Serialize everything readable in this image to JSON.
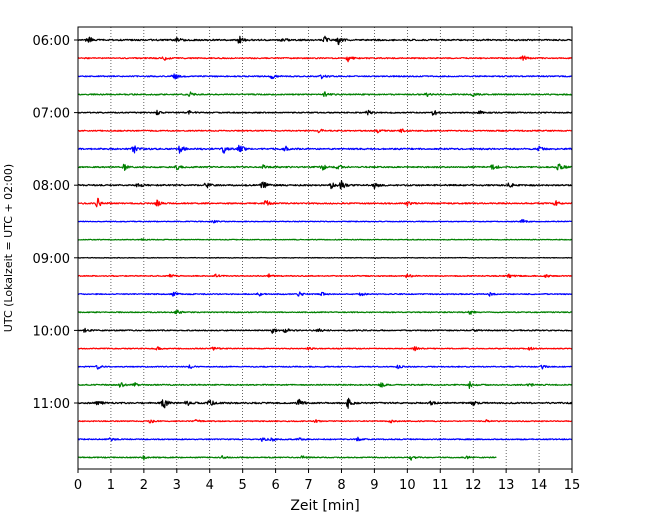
{
  "chart_data": {
    "type": "line",
    "title": "",
    "xlabel": "Zeit  [min]",
    "ylabel": "UTC (Lokalzeit = UTC + 02:00)",
    "xlim": [
      0,
      15
    ],
    "x_ticks": [
      "0",
      "1",
      "2",
      "3",
      "4",
      "5",
      "6",
      "7",
      "8",
      "9",
      "10",
      "11",
      "12",
      "13",
      "14",
      "15"
    ],
    "y_tick_labels": [
      "06:00",
      "07:00",
      "08:00",
      "09:00",
      "10:00",
      "11:00"
    ],
    "y_tick_rows": [
      0,
      4,
      8,
      12,
      16,
      20
    ],
    "grid": "vertical dotted",
    "legend": "none",
    "trace_interval_min": 15,
    "colors": [
      "#000000",
      "#ff0000",
      "#0000ff",
      "#008000"
    ],
    "rows": [
      {
        "time": "06:00",
        "color": "#000000",
        "end_min": 15,
        "amplitude": 1.0,
        "events": [
          [
            0.3,
            0.8
          ],
          [
            3.0,
            0.4
          ],
          [
            4.9,
            0.7
          ],
          [
            6.2,
            0.6
          ],
          [
            7.5,
            0.5
          ],
          [
            7.9,
            0.8
          ]
        ]
      },
      {
        "time": "06:15",
        "color": "#ff0000",
        "end_min": 15,
        "amplitude": 0.8,
        "events": [
          [
            2.6,
            0.5
          ],
          [
            8.2,
            0.6
          ],
          [
            13.5,
            0.7
          ]
        ]
      },
      {
        "time": "06:30",
        "color": "#0000ff",
        "end_min": 15,
        "amplitude": 0.8,
        "events": [
          [
            2.9,
            1.0
          ],
          [
            5.9,
            0.6
          ],
          [
            7.4,
            0.4
          ]
        ]
      },
      {
        "time": "06:45",
        "color": "#008000",
        "end_min": 15,
        "amplitude": 0.8,
        "events": [
          [
            3.4,
            0.5
          ],
          [
            7.5,
            0.7
          ],
          [
            10.6,
            0.6
          ],
          [
            12.0,
            0.4
          ]
        ]
      },
      {
        "time": "07:00",
        "color": "#000000",
        "end_min": 15,
        "amplitude": 0.8,
        "events": [
          [
            2.4,
            0.4
          ],
          [
            3.4,
            0.5
          ],
          [
            8.8,
            0.5
          ],
          [
            10.8,
            0.7
          ],
          [
            12.2,
            0.4
          ]
        ]
      },
      {
        "time": "07:15",
        "color": "#ff0000",
        "end_min": 15,
        "amplitude": 0.8,
        "events": [
          [
            7.3,
            0.5
          ],
          [
            9.1,
            0.4
          ],
          [
            9.8,
            0.5
          ]
        ]
      },
      {
        "time": "07:30",
        "color": "#0000ff",
        "end_min": 15,
        "amplitude": 1.0,
        "events": [
          [
            1.7,
            0.7
          ],
          [
            3.1,
            0.8
          ],
          [
            4.4,
            0.9
          ],
          [
            4.9,
            0.8
          ],
          [
            6.3,
            0.4
          ],
          [
            14.0,
            0.4
          ]
        ]
      },
      {
        "time": "07:45",
        "color": "#008000",
        "end_min": 15,
        "amplitude": 0.9,
        "events": [
          [
            1.4,
            0.6
          ],
          [
            3.0,
            0.5
          ],
          [
            5.6,
            0.5
          ],
          [
            7.4,
            0.7
          ],
          [
            7.9,
            0.6
          ],
          [
            12.6,
            0.7
          ],
          [
            14.6,
            0.9
          ]
        ]
      },
      {
        "time": "08:00",
        "color": "#000000",
        "end_min": 15,
        "amplitude": 1.0,
        "events": [
          [
            1.8,
            0.5
          ],
          [
            3.9,
            0.5
          ],
          [
            5.6,
            0.9
          ],
          [
            7.7,
            0.6
          ],
          [
            8.0,
            0.7
          ],
          [
            9.0,
            0.5
          ],
          [
            13.1,
            0.5
          ]
        ]
      },
      {
        "time": "08:15",
        "color": "#ff0000",
        "end_min": 15,
        "amplitude": 0.9,
        "events": [
          [
            0.6,
            0.9
          ],
          [
            2.4,
            0.5
          ],
          [
            5.7,
            0.6
          ],
          [
            10.0,
            0.4
          ],
          [
            14.5,
            0.5
          ]
        ]
      },
      {
        "time": "08:30",
        "color": "#0000ff",
        "end_min": 15,
        "amplitude": 0.6,
        "events": [
          [
            4.1,
            0.4
          ],
          [
            13.5,
            0.6
          ]
        ]
      },
      {
        "time": "08:45",
        "color": "#008000",
        "end_min": 15,
        "amplitude": 0.5,
        "events": [
          [
            1.9,
            0.5
          ]
        ]
      },
      {
        "time": "09:00",
        "color": "#000000",
        "end_min": 15,
        "amplitude": 0.4,
        "events": [
          [
            9.0,
            0.3
          ]
        ]
      },
      {
        "time": "09:15",
        "color": "#ff0000",
        "end_min": 15,
        "amplitude": 0.7,
        "events": [
          [
            2.8,
            0.5
          ],
          [
            4.2,
            0.5
          ],
          [
            5.8,
            0.4
          ],
          [
            10.0,
            0.5
          ],
          [
            13.1,
            0.4
          ],
          [
            14.2,
            0.4
          ]
        ]
      },
      {
        "time": "09:30",
        "color": "#0000ff",
        "end_min": 15,
        "amplitude": 0.7,
        "events": [
          [
            2.9,
            0.6
          ],
          [
            5.5,
            0.4
          ],
          [
            6.7,
            0.6
          ],
          [
            7.4,
            0.4
          ],
          [
            8.6,
            0.4
          ],
          [
            12.5,
            0.4
          ]
        ]
      },
      {
        "time": "09:45",
        "color": "#008000",
        "end_min": 15,
        "amplitude": 0.7,
        "events": [
          [
            3.0,
            0.6
          ],
          [
            11.9,
            0.6
          ]
        ]
      },
      {
        "time": "10:00",
        "color": "#000000",
        "end_min": 15,
        "amplitude": 0.8,
        "events": [
          [
            0.2,
            0.6
          ],
          [
            5.9,
            0.6
          ],
          [
            6.3,
            0.6
          ],
          [
            7.3,
            0.4
          ],
          [
            12.0,
            0.4
          ]
        ]
      },
      {
        "time": "10:15",
        "color": "#ff0000",
        "end_min": 15,
        "amplitude": 0.7,
        "events": [
          [
            2.4,
            0.4
          ],
          [
            4.1,
            0.4
          ],
          [
            7.0,
            0.4
          ],
          [
            10.2,
            0.6
          ],
          [
            13.7,
            0.4
          ]
        ]
      },
      {
        "time": "10:30",
        "color": "#0000ff",
        "end_min": 15,
        "amplitude": 0.7,
        "events": [
          [
            0.6,
            0.5
          ],
          [
            3.4,
            0.4
          ],
          [
            9.7,
            0.4
          ],
          [
            14.1,
            0.4
          ]
        ]
      },
      {
        "time": "10:45",
        "color": "#008000",
        "end_min": 15,
        "amplitude": 0.8,
        "events": [
          [
            1.3,
            0.6
          ],
          [
            1.7,
            0.5
          ],
          [
            9.2,
            0.5
          ],
          [
            11.9,
            0.8
          ],
          [
            13.7,
            0.4
          ]
        ]
      },
      {
        "time": "11:00",
        "color": "#000000",
        "end_min": 15,
        "amplitude": 1.0,
        "events": [
          [
            0.6,
            0.5
          ],
          [
            2.6,
            1.0
          ],
          [
            3.3,
            0.5
          ],
          [
            4.0,
            0.7
          ],
          [
            6.7,
            0.6
          ],
          [
            8.2,
            0.9
          ],
          [
            10.7,
            0.4
          ],
          [
            12.0,
            0.4
          ]
        ]
      },
      {
        "time": "11:15",
        "color": "#ff0000",
        "end_min": 15,
        "amplitude": 0.7,
        "events": [
          [
            2.2,
            0.5
          ],
          [
            3.6,
            0.4
          ],
          [
            7.2,
            0.4
          ],
          [
            9.5,
            0.4
          ],
          [
            12.4,
            0.3
          ]
        ]
      },
      {
        "time": "11:30",
        "color": "#0000ff",
        "end_min": 15,
        "amplitude": 0.7,
        "events": [
          [
            1.0,
            0.4
          ],
          [
            5.6,
            0.6
          ],
          [
            5.9,
            0.5
          ],
          [
            6.7,
            0.4
          ],
          [
            8.5,
            0.4
          ]
        ]
      },
      {
        "time": "11:45",
        "color": "#008000",
        "end_min": 12.7,
        "amplitude": 0.7,
        "events": [
          [
            2.0,
            0.5
          ],
          [
            4.4,
            0.4
          ],
          [
            6.8,
            0.4
          ],
          [
            10.1,
            0.6
          ],
          [
            11.8,
            0.5
          ]
        ]
      }
    ]
  }
}
